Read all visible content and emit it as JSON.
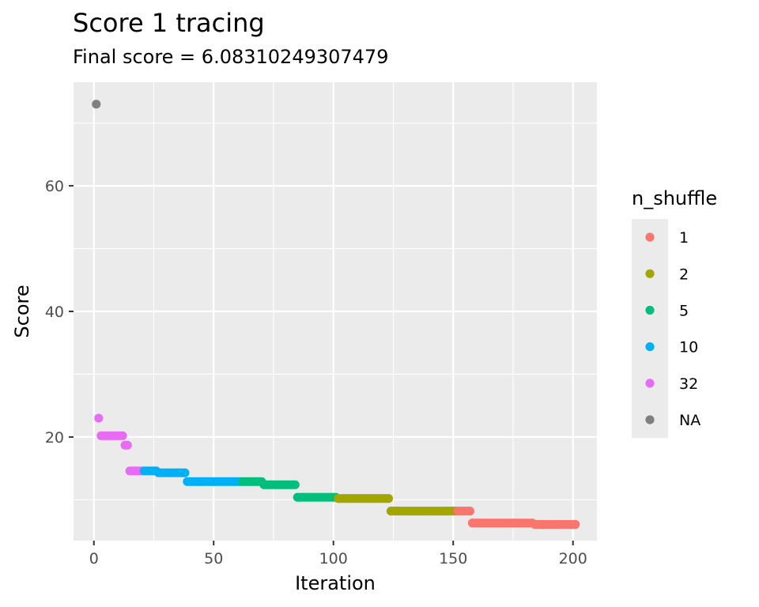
{
  "chart_data": {
    "type": "scatter",
    "title": "Score 1 tracing",
    "subtitle": "Final score = 6.08310249307479",
    "xlabel": "Iteration",
    "ylabel": "Score",
    "xlim": [
      -8.5,
      210
    ],
    "ylim": [
      3.5,
      76.5
    ],
    "x_ticks": [
      0,
      50,
      100,
      150,
      200
    ],
    "y_ticks": [
      20,
      40,
      60
    ],
    "grid": true,
    "legend": {
      "title": "n_shuffle",
      "position": "right",
      "entries": [
        {
          "label": "1",
          "color": "#F8766D"
        },
        {
          "label": "2",
          "color": "#A3A500"
        },
        {
          "label": "5",
          "color": "#00BF7D"
        },
        {
          "label": "10",
          "color": "#00B0F6"
        },
        {
          "label": "32",
          "color": "#E76BF3"
        },
        {
          "label": "NA",
          "color": "#7F7F7F"
        }
      ]
    },
    "series": [
      {
        "name": "NA",
        "color": "#7F7F7F",
        "points": [
          [
            1,
            73.0
          ]
        ]
      },
      {
        "name": "32",
        "color": "#E76BF3",
        "segments": [
          {
            "x0": 2,
            "x1": 2,
            "y": 23.0
          },
          {
            "x0": 3,
            "x1": 12,
            "y": 20.2
          },
          {
            "x0": 13,
            "x1": 14,
            "y": 18.7
          },
          {
            "x0": 15,
            "x1": 20,
            "y": 14.6
          }
        ]
      },
      {
        "name": "10",
        "color": "#00B0F6",
        "segments": [
          {
            "x0": 21,
            "x1": 26,
            "y": 14.6
          },
          {
            "x0": 27,
            "x1": 38,
            "y": 14.3
          },
          {
            "x0": 39,
            "x1": 61,
            "y": 12.9
          }
        ]
      },
      {
        "name": "5",
        "color": "#00BF7D",
        "segments": [
          {
            "x0": 62,
            "x1": 70,
            "y": 12.9
          },
          {
            "x0": 71,
            "x1": 84,
            "y": 12.4
          },
          {
            "x0": 85,
            "x1": 101,
            "y": 10.4
          }
        ]
      },
      {
        "name": "2",
        "color": "#A3A500",
        "segments": [
          {
            "x0": 102,
            "x1": 123,
            "y": 10.2
          },
          {
            "x0": 124,
            "x1": 151,
            "y": 8.2
          }
        ]
      },
      {
        "name": "1",
        "color": "#F8766D",
        "segments": [
          {
            "x0": 152,
            "x1": 157,
            "y": 8.2
          },
          {
            "x0": 158,
            "x1": 183,
            "y": 6.3
          },
          {
            "x0": 184,
            "x1": 201,
            "y": 6.08
          }
        ]
      }
    ]
  }
}
